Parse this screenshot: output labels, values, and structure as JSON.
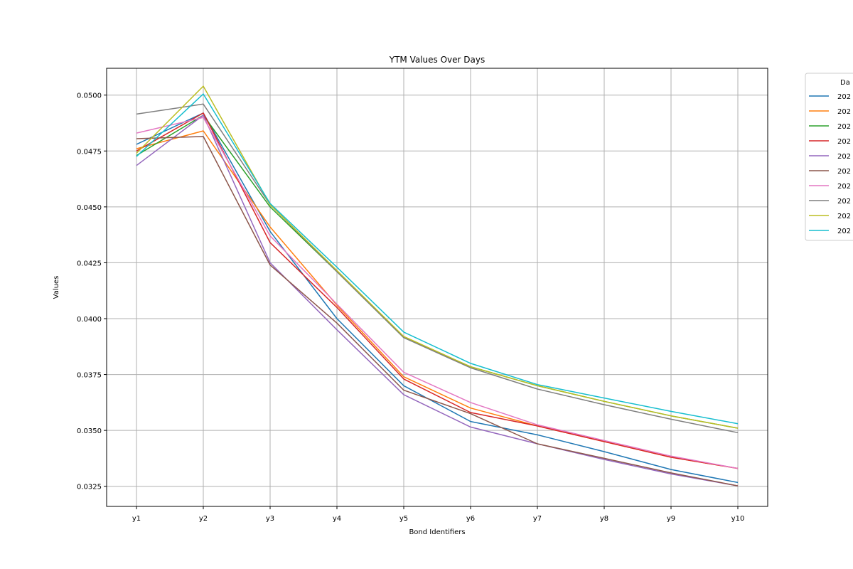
{
  "chart_data": {
    "type": "line",
    "title": "YTM Values Over Days",
    "xlabel": "Bond Identifiers",
    "ylabel": "Values",
    "categories": [
      "y1",
      "y2",
      "y3",
      "y4",
      "y5",
      "y6",
      "y7",
      "y8",
      "y9",
      "y10"
    ],
    "ylim": [
      0.0316,
      0.0512
    ],
    "yticks": [
      "0.0325",
      "0.0350",
      "0.0375",
      "0.0400",
      "0.0425",
      "0.0450",
      "0.0475",
      "0.0500"
    ],
    "grid": true,
    "legend": {
      "title": "Da",
      "placement": "outside-right-top"
    },
    "series": [
      {
        "name": "202",
        "color": "#1f77b4",
        "values": [
          0.0478,
          0.0492,
          0.0439,
          0.04,
          0.037,
          0.0354,
          0.0348,
          0.03405,
          0.03325,
          0.03267
        ]
      },
      {
        "name": "202",
        "color": "#ff7f0e",
        "values": [
          0.0476,
          0.0484,
          0.0441,
          0.0406,
          0.0374,
          0.036,
          0.0352,
          0.0345,
          0.0338,
          0.0333
        ]
      },
      {
        "name": "202",
        "color": "#2ca02c",
        "values": [
          0.0473,
          0.0491,
          0.045,
          0.0421,
          0.03915,
          0.03785,
          0.037,
          0.0363,
          0.03565,
          0.0351
        ]
      },
      {
        "name": "202",
        "color": "#d62728",
        "values": [
          0.0475,
          0.0492,
          0.0434,
          0.0405,
          0.0373,
          0.0358,
          0.0352,
          0.0345,
          0.0338,
          0.0333
        ]
      },
      {
        "name": "202",
        "color": "#9467bd",
        "values": [
          0.04685,
          0.0491,
          0.0425,
          0.0395,
          0.0366,
          0.03515,
          0.0344,
          0.0337,
          0.03305,
          0.03252
        ]
      },
      {
        "name": "202",
        "color": "#8c564b",
        "values": [
          0.04805,
          0.04815,
          0.0424,
          0.0398,
          0.0368,
          0.03575,
          0.0344,
          0.03375,
          0.0331,
          0.03252
        ]
      },
      {
        "name": "202",
        "color": "#e377c2",
        "values": [
          0.0483,
          0.049,
          0.0437,
          0.04065,
          0.0376,
          0.03625,
          0.03525,
          0.03455,
          0.03385,
          0.0333
        ]
      },
      {
        "name": "202",
        "color": "#7f7f7f",
        "values": [
          0.04915,
          0.0496,
          0.0451,
          0.0421,
          0.03915,
          0.0378,
          0.03685,
          0.03615,
          0.0355,
          0.0349
        ]
      },
      {
        "name": "202",
        "color": "#bcbd22",
        "values": [
          0.0474,
          0.0504,
          0.0451,
          0.04215,
          0.0392,
          0.03785,
          0.037,
          0.0363,
          0.03565,
          0.0351
        ]
      },
      {
        "name": "202",
        "color": "#17becf",
        "values": [
          0.04725,
          0.05005,
          0.04515,
          0.0423,
          0.0394,
          0.038,
          0.03705,
          0.03645,
          0.03585,
          0.0353
        ]
      }
    ]
  }
}
